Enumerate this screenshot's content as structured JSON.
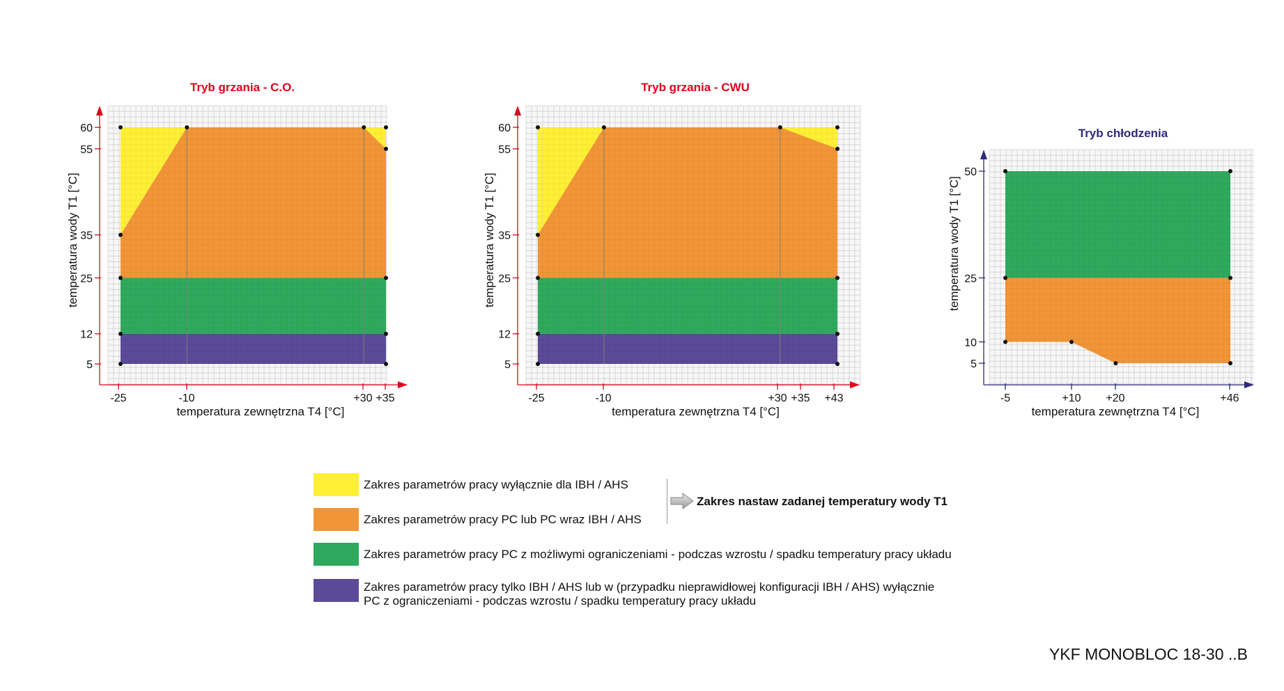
{
  "chart_data": [
    {
      "type": "area",
      "title": "Tryb grzania - C.O.",
      "xlabel": "temperatura zewnętrzna T4 [°C]",
      "ylabel": "temperatura wody T1 [°C]",
      "xticks": [
        "-25",
        "-10",
        "+30",
        "+35"
      ],
      "yticks": [
        "5",
        "12",
        "25",
        "35",
        "55",
        "60"
      ],
      "xlim": [
        -30,
        40
      ],
      "ylim": [
        2.5,
        65
      ],
      "axis_color": "#e3001b",
      "regions": [
        {
          "name": "yellow",
          "points": [
            [
              -25,
              35
            ],
            [
              -25,
              60
            ],
            [
              35,
              60
            ],
            [
              35,
              55
            ],
            [
              -10,
              60
            ],
            [
              30,
              60
            ]
          ]
        },
        {
          "name": "orange",
          "points": [
            [
              -25,
              25
            ],
            [
              -25,
              35
            ],
            [
              -10,
              60
            ],
            [
              30,
              60
            ],
            [
              35,
              55
            ],
            [
              35,
              25
            ]
          ]
        },
        {
          "name": "green",
          "points": [
            [
              -25,
              12
            ],
            [
              -25,
              25
            ],
            [
              35,
              25
            ],
            [
              35,
              12
            ]
          ]
        },
        {
          "name": "purple",
          "points": [
            [
              -25,
              5
            ],
            [
              -25,
              12
            ],
            [
              35,
              12
            ],
            [
              35,
              5
            ]
          ]
        }
      ],
      "vlines": [
        -10,
        30
      ],
      "markers": [
        [
          -25,
          60
        ],
        [
          -10,
          60
        ],
        [
          30,
          60
        ],
        [
          35,
          60
        ],
        [
          35,
          55
        ],
        [
          -25,
          35
        ],
        [
          -25,
          25
        ],
        [
          35,
          25
        ],
        [
          -25,
          12
        ],
        [
          35,
          12
        ],
        [
          -25,
          5
        ],
        [
          35,
          5
        ]
      ]
    },
    {
      "type": "area",
      "title": "Tryb grzania - CWU",
      "xlabel": "temperatura zewnętrzna T4 [°C]",
      "ylabel": "temperatura wody T1 [°C]",
      "xticks": [
        "-25",
        "-10",
        "+30",
        "+35",
        "+43"
      ],
      "yticks": [
        "5",
        "12",
        "25",
        "35",
        "55",
        "60"
      ],
      "xlim": [
        -30,
        48
      ],
      "ylim": [
        2.5,
        65
      ],
      "axis_color": "#e3001b",
      "regions": [
        {
          "name": "yellow",
          "points": [
            [
              -25,
              35
            ],
            [
              -25,
              60
            ],
            [
              43,
              60
            ],
            [
              43,
              55
            ]
          ]
        },
        {
          "name": "orange",
          "points": [
            [
              -25,
              25
            ],
            [
              -25,
              35
            ],
            [
              -10,
              60
            ],
            [
              30,
              60
            ],
            [
              43,
              55
            ],
            [
              43,
              25
            ]
          ]
        },
        {
          "name": "green",
          "points": [
            [
              -25,
              12
            ],
            [
              -25,
              25
            ],
            [
              43,
              25
            ],
            [
              43,
              12
            ]
          ]
        },
        {
          "name": "purple",
          "points": [
            [
              -25,
              5
            ],
            [
              -25,
              12
            ],
            [
              43,
              12
            ],
            [
              43,
              5
            ]
          ]
        }
      ],
      "vlines": [
        -10,
        30
      ],
      "markers": [
        [
          -25,
          60
        ],
        [
          -10,
          60
        ],
        [
          30,
          60
        ],
        [
          43,
          60
        ],
        [
          43,
          55
        ],
        [
          -25,
          35
        ],
        [
          -25,
          25
        ],
        [
          43,
          25
        ],
        [
          -25,
          12
        ],
        [
          43,
          12
        ],
        [
          -25,
          5
        ],
        [
          43,
          5
        ]
      ]
    },
    {
      "type": "area",
      "title": "Tryb chłodzenia",
      "xlabel": "temperatura zewnętrzna T4 [°C]",
      "ylabel": "temperatura wody T1 [°C]",
      "xticks": [
        "-5",
        "+10",
        "+20",
        "+46"
      ],
      "yticks": [
        "5",
        "10",
        "25",
        "50"
      ],
      "xlim": [
        -10,
        51
      ],
      "ylim": [
        0,
        55
      ],
      "axis_color": "#2e2a7a",
      "regions": [
        {
          "name": "green",
          "points": [
            [
              -5,
              25
            ],
            [
              -5,
              50
            ],
            [
              46,
              50
            ],
            [
              46,
              25
            ]
          ]
        },
        {
          "name": "orange",
          "points": [
            [
              -5,
              10
            ],
            [
              -5,
              25
            ],
            [
              46,
              25
            ],
            [
              46,
              5
            ],
            [
              20,
              5
            ],
            [
              10,
              10
            ]
          ]
        }
      ],
      "vlines": [],
      "markers": [
        [
          -5,
          50
        ],
        [
          46,
          50
        ],
        [
          -5,
          25
        ],
        [
          46,
          25
        ],
        [
          -5,
          10
        ],
        [
          10,
          10
        ],
        [
          20,
          5
        ],
        [
          46,
          5
        ]
      ]
    }
  ],
  "colors": {
    "yellow": "#fef035",
    "orange": "#f29537",
    "green": "#2fa95d",
    "purple": "#5a4a98",
    "grid": "#d9d9d9",
    "red_axis": "#e3001b",
    "blue_axis": "#2e2a7a"
  },
  "legend": {
    "items": [
      {
        "color": "#fef035",
        "text": "Zakres parametrów pracy wyłącznie dla IBH / AHS"
      },
      {
        "color": "#f29537",
        "text": "Zakres parametrów pracy PC lub  PC wraz IBH / AHS"
      },
      {
        "color": "#2fa95d",
        "text": "Zakres parametrów pracy PC z możliwymi ograniczeniami - podczas wzrostu / spadku temperatury pracy układu"
      },
      {
        "color": "#5a4a98",
        "text_line1": "Zakres parametrów pracy tylko IBH / AHS lub w (przypadku nieprawidłowej konfiguracji IBH / AHS) wyłącznie",
        "text_line2": "PC z ograniczeniami  - podczas wzrostu / spadku temperatury pracy układu"
      }
    ],
    "setpoint_label": "Zakres nastaw zadanej temperatury wody T1",
    "arrow_icon": "right-arrow-icon"
  },
  "model": "YKF MONOBLOC 18-30 ..B"
}
